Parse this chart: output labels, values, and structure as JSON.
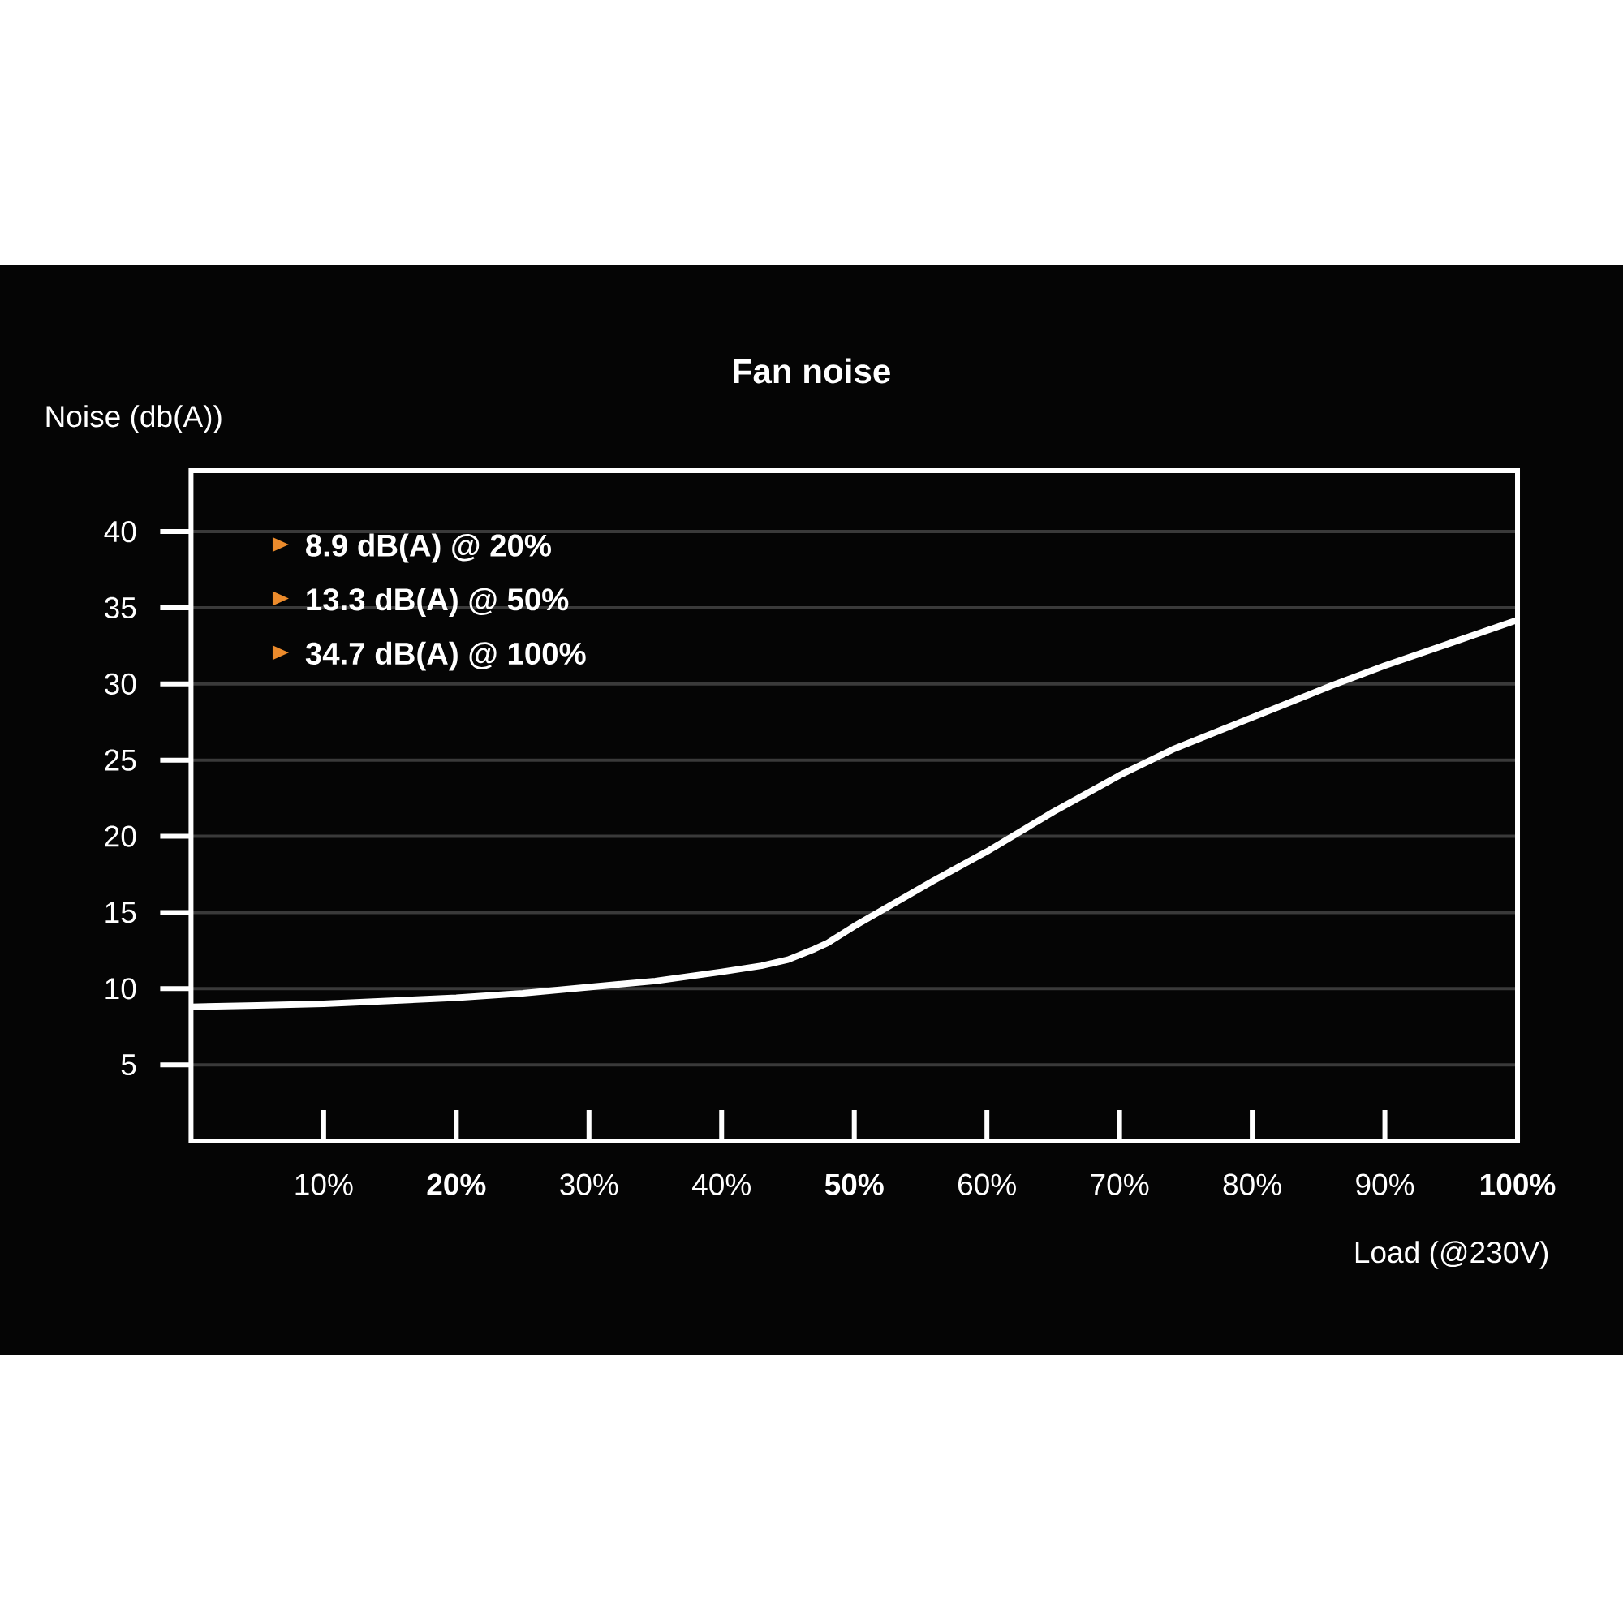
{
  "chart_data": {
    "type": "line",
    "title": "Fan noise",
    "xlabel": "Load (@230V)",
    "ylabel": "Noise (db(A))",
    "annotations": [
      "8.9 dB(A) @ 20%",
      "13.3 dB(A) @ 50%",
      "34.7 dB(A) @ 100%"
    ],
    "x": [
      0,
      5,
      10,
      15,
      20,
      25,
      30,
      35,
      40,
      43,
      45,
      47,
      48,
      50,
      53,
      56,
      60,
      65,
      70,
      74,
      78,
      82,
      86,
      90,
      95,
      100
    ],
    "series": [
      {
        "color": "#ffffff",
        "values": [
          8.8,
          8.9,
          9.0,
          9.2,
          9.4,
          9.7,
          10.1,
          10.5,
          11.1,
          11.5,
          11.9,
          12.6,
          13.0,
          14.1,
          15.6,
          17.1,
          19.0,
          21.6,
          24.0,
          25.7,
          27.1,
          28.5,
          29.9,
          31.2,
          32.7,
          34.2
        ]
      }
    ],
    "xlim": [
      0,
      100
    ],
    "ylim": [
      0,
      44
    ],
    "xticks": [
      {
        "value": 10,
        "label": "10%"
      },
      {
        "value": 20,
        "label": "**20%**"
      },
      {
        "value": 30,
        "label": "30%"
      },
      {
        "value": 40,
        "label": "40%"
      },
      {
        "value": 50,
        "label": "**50%**"
      },
      {
        "value": 60,
        "label": "60%"
      },
      {
        "value": 70,
        "label": "70%"
      },
      {
        "value": 80,
        "label": "80%"
      },
      {
        "value": 90,
        "label": "90%"
      },
      {
        "value": 100,
        "label": "**100%**"
      }
    ],
    "yticks": [
      5,
      10,
      15,
      20,
      25,
      30,
      35,
      40
    ],
    "grid": "y"
  }
}
